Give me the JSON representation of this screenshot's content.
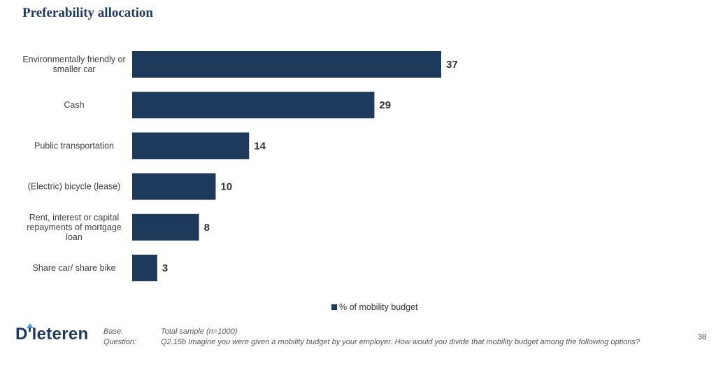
{
  "page": {
    "title": "Preferability allocation",
    "page_number": "38"
  },
  "footer": {
    "logo_text": "D'Ieteren",
    "base_key": "Base:",
    "base_val": "Total sample (n=1000)",
    "question_key": "Question:",
    "question_val": "Q2.15b Imagine you were given a mobility budget by your employer. How would you divide that mobility budget among the following options?"
  },
  "colors": {
    "bar": "#1d3a5c",
    "title": "#1f3a5f"
  },
  "chart_data": {
    "type": "bar",
    "orientation": "horizontal",
    "categories": [
      [
        "Environmentally friendly or",
        "smaller car"
      ],
      [
        "Cash"
      ],
      [
        "Public transportation"
      ],
      [
        "(Electric) bicycle (lease)"
      ],
      [
        "Rent, interest or capital",
        "repayments of mortgage",
        "loan"
      ],
      [
        "Share car/ share bike"
      ]
    ],
    "series": [
      {
        "name": "% of mobility budget",
        "values": [
          37,
          29,
          14,
          10,
          8,
          3
        ]
      }
    ],
    "xlim": [
      0,
      37
    ],
    "grid": false,
    "legend": "bottom"
  }
}
